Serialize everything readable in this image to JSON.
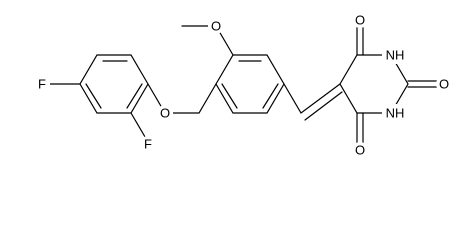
{
  "atoms": [
    "O",
    "O",
    "F",
    "F",
    "O",
    "NH",
    "O",
    "NH",
    "O"
  ]
}
